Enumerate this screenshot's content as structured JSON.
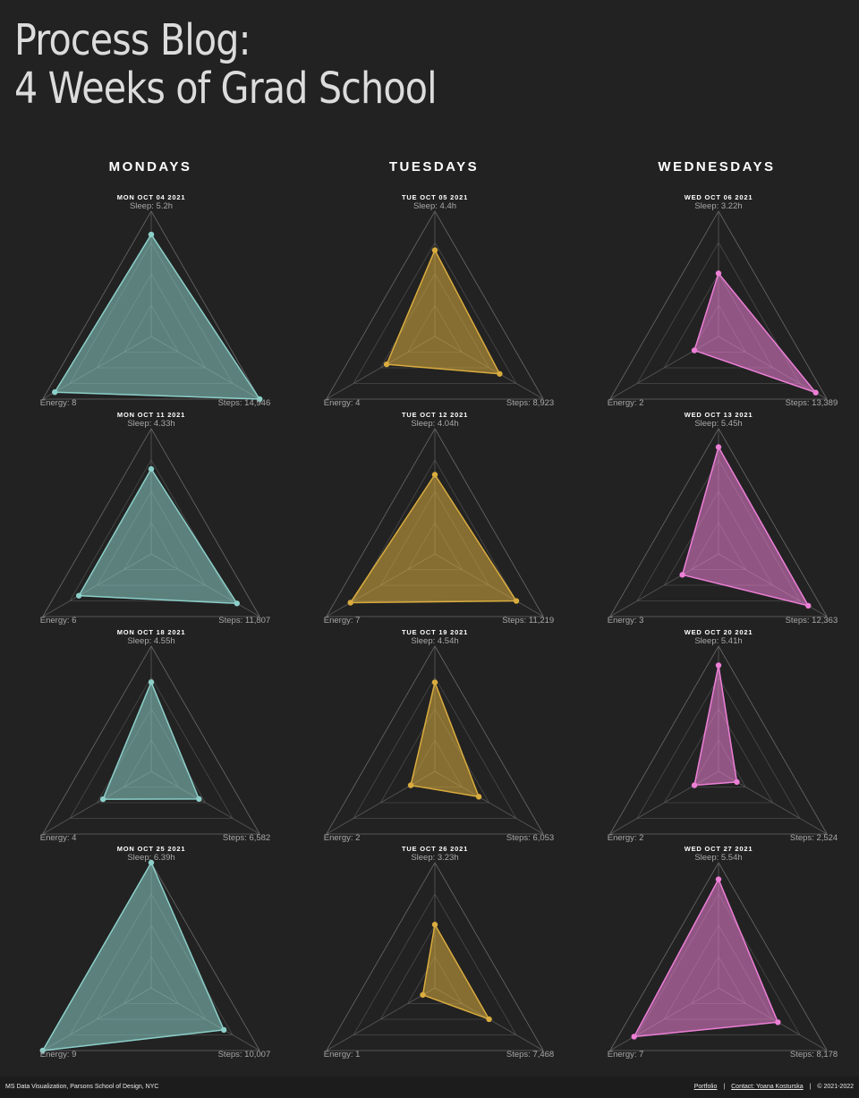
{
  "page": {
    "title_line1": "Process Blog:",
    "title_line2": "4 Weeks of Grad School"
  },
  "columns": [
    {
      "label": "MONDAYS",
      "color": "#8ccfc9"
    },
    {
      "label": "TUESDAYS",
      "color": "#d9ac3e"
    },
    {
      "label": "WEDNESDAYS",
      "color": "#ec7fd6"
    }
  ],
  "chart_data": {
    "type": "radar",
    "axes": [
      "Sleep",
      "Steps",
      "Energy"
    ],
    "axis_ranges": {
      "Sleep": [
        0,
        6.39
      ],
      "Steps": [
        0,
        14946
      ],
      "Energy": [
        0,
        9
      ]
    },
    "rings": 4,
    "charts": [
      {
        "column": 0,
        "row": 0,
        "title": "MON OCT 04 2021",
        "sleep": 5.2,
        "steps": 14946,
        "energy": 8,
        "sleep_label": "Sleep: 5.2h",
        "steps_label": "Steps: 14,946",
        "energy_label": "Energy: 8"
      },
      {
        "column": 0,
        "row": 1,
        "title": "MON OCT 11 2021",
        "sleep": 4.33,
        "steps": 11807,
        "energy": 6,
        "sleep_label": "Sleep: 4.33h",
        "steps_label": "Steps: 11,807",
        "energy_label": "Energy: 6"
      },
      {
        "column": 0,
        "row": 2,
        "title": "MON OCT 18 2021",
        "sleep": 4.55,
        "steps": 6582,
        "energy": 4,
        "sleep_label": "Sleep: 4.55h",
        "steps_label": "Steps: 6,582",
        "energy_label": "Energy: 4"
      },
      {
        "column": 0,
        "row": 3,
        "title": "MON OCT 25 2021",
        "sleep": 6.39,
        "steps": 10007,
        "energy": 9,
        "sleep_label": "Sleep: 6.39h",
        "steps_label": "Steps: 10,007",
        "energy_label": "Energy: 9"
      },
      {
        "column": 1,
        "row": 0,
        "title": "TUE OCT 05 2021",
        "sleep": 4.4,
        "steps": 8923,
        "energy": 4,
        "sleep_label": "Sleep: 4.4h",
        "steps_label": "Steps: 8,923",
        "energy_label": "Energy: 4"
      },
      {
        "column": 1,
        "row": 1,
        "title": "TUE OCT 12 2021",
        "sleep": 4.04,
        "steps": 11219,
        "energy": 7,
        "sleep_label": "Sleep: 4.04h",
        "steps_label": "Steps: 11,219",
        "energy_label": "Energy: 7"
      },
      {
        "column": 1,
        "row": 2,
        "title": "TUE OCT 19 2021",
        "sleep": 4.54,
        "steps": 6053,
        "energy": 2,
        "sleep_label": "Sleep: 4.54h",
        "steps_label": "Steps: 6,053",
        "energy_label": "Energy: 2"
      },
      {
        "column": 1,
        "row": 3,
        "title": "TUE OCT 26 2021",
        "sleep": 3.23,
        "steps": 7468,
        "energy": 1,
        "sleep_label": "Sleep: 3.23h",
        "steps_label": "Steps: 7,468",
        "energy_label": "Energy: 1"
      },
      {
        "column": 2,
        "row": 0,
        "title": "WED OCT 06 2021",
        "sleep": 3.22,
        "steps": 13389,
        "energy": 2,
        "sleep_label": "Sleep: 3.22h",
        "steps_label": "Steps: 13,389",
        "energy_label": "Energy: 2"
      },
      {
        "column": 2,
        "row": 1,
        "title": "WED OCT 13 2021",
        "sleep": 5.45,
        "steps": 12363,
        "energy": 3,
        "sleep_label": "Sleep: 5.45h",
        "steps_label": "Steps: 12,363",
        "energy_label": "Energy: 3"
      },
      {
        "column": 2,
        "row": 2,
        "title": "WED OCT 20 2021",
        "sleep": 5.41,
        "steps": 2524,
        "energy": 2,
        "sleep_label": "Sleep: 5.41h",
        "steps_label": "Steps: 2,524",
        "energy_label": "Energy: 2"
      },
      {
        "column": 2,
        "row": 3,
        "title": "WED OCT 27 2021",
        "sleep": 5.54,
        "steps": 8178,
        "energy": 7,
        "sleep_label": "Sleep: 5.54h",
        "steps_label": "Steps: 8,178",
        "energy_label": "Energy: 7"
      }
    ]
  },
  "footer": {
    "left_text": "MS Data Visualization, Parsons School of Design, NYC",
    "portfolio_link": "Portfolio",
    "separator": "|",
    "contact_link": "Contact: Yoana Kosturska",
    "copyright": "© 2021-2022"
  }
}
